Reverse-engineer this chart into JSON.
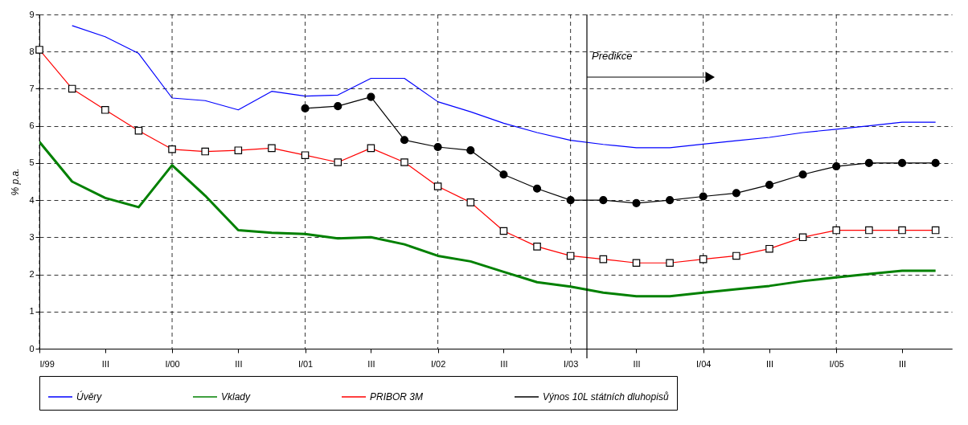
{
  "chart_data": {
    "type": "line",
    "ylabel": "% p.a.",
    "x": [
      "1999-01",
      "1999-04",
      "1999-07",
      "1999-10",
      "2000-01",
      "2000-04",
      "2000-07",
      "2000-10",
      "2001-01",
      "2001-04",
      "2001-07",
      "2001-10",
      "2002-01",
      "2002-04",
      "2002-07",
      "2002-10",
      "2003-01",
      "2003-04",
      "2003-07",
      "2003-10",
      "2004-01",
      "2004-04",
      "2004-07",
      "2004-10",
      "2005-01",
      "2005-04",
      "2005-07",
      "2005-10"
    ],
    "xlim": [
      "1999-01",
      "2005-11-15"
    ],
    "xticks": [
      {
        "value": "1999-01",
        "label": "I/99"
      },
      {
        "value": "1999-07",
        "label": "III"
      },
      {
        "value": "2000-01",
        "label": "I/00"
      },
      {
        "value": "2000-07",
        "label": "III"
      },
      {
        "value": "2001-01",
        "label": "I/01"
      },
      {
        "value": "2001-07",
        "label": "III"
      },
      {
        "value": "2002-01",
        "label": "I/02"
      },
      {
        "value": "2002-07",
        "label": "III"
      },
      {
        "value": "2003-01",
        "label": "I/03"
      },
      {
        "value": "2003-07",
        "label": "III"
      },
      {
        "value": "2004-01",
        "label": "I/04"
      },
      {
        "value": "2004-07",
        "label": "III"
      },
      {
        "value": "2005-01",
        "label": "I/05"
      },
      {
        "value": "2005-07",
        "label": "III"
      }
    ],
    "ylim": [
      0,
      9
    ],
    "yticks": [
      0,
      1,
      2,
      3,
      4,
      5,
      6,
      7,
      8,
      9
    ],
    "series": [
      {
        "name": "Úvěry",
        "color": "#0000ff",
        "marker": "none",
        "values": [
          null,
          8.7,
          8.4,
          7.95,
          6.75,
          6.68,
          6.43,
          6.93,
          6.8,
          6.83,
          7.28,
          7.28,
          6.65,
          6.38,
          6.07,
          5.82,
          5.61,
          5.5,
          5.41,
          5.41,
          5.51,
          5.6,
          5.69,
          5.82,
          5.91,
          6.0,
          6.1,
          6.1
        ]
      },
      {
        "name": "Vklady",
        "color": "#008000",
        "marker": "none",
        "values": [
          5.57,
          4.5,
          4.06,
          3.81,
          4.94,
          4.12,
          3.19,
          3.12,
          3.09,
          2.97,
          3.0,
          2.81,
          2.5,
          2.35,
          2.07,
          1.79,
          1.67,
          1.51,
          1.41,
          1.41,
          1.51,
          1.6,
          1.69,
          1.82,
          1.92,
          2.01,
          2.1,
          2.1
        ]
      },
      {
        "name": "PRIBOR 3M",
        "color": "#ff0000",
        "marker": "square",
        "values": [
          8.05,
          7.0,
          6.43,
          5.87,
          5.37,
          5.31,
          5.34,
          5.4,
          5.21,
          5.02,
          5.4,
          5.02,
          4.37,
          3.94,
          3.17,
          2.75,
          2.5,
          2.41,
          2.31,
          2.31,
          2.41,
          2.5,
          2.69,
          3.0,
          3.19,
          3.19,
          3.19,
          3.19
        ]
      },
      {
        "name": "Výnos 10L státních dluhopisů",
        "color": "#000000",
        "marker": "circle",
        "values": [
          null,
          null,
          null,
          null,
          null,
          null,
          null,
          null,
          6.47,
          6.53,
          6.78,
          5.62,
          5.43,
          5.34,
          4.69,
          4.31,
          4.0,
          4.0,
          3.92,
          4.0,
          4.1,
          4.19,
          4.41,
          4.69,
          4.91,
          5.0,
          5.0,
          5.0
        ]
      }
    ],
    "ref_lines": [
      {
        "axis": "x",
        "value": "2003-02-15",
        "label": "Predikce"
      }
    ],
    "grid": true,
    "legend": "bottom",
    "line_style": "solid"
  }
}
